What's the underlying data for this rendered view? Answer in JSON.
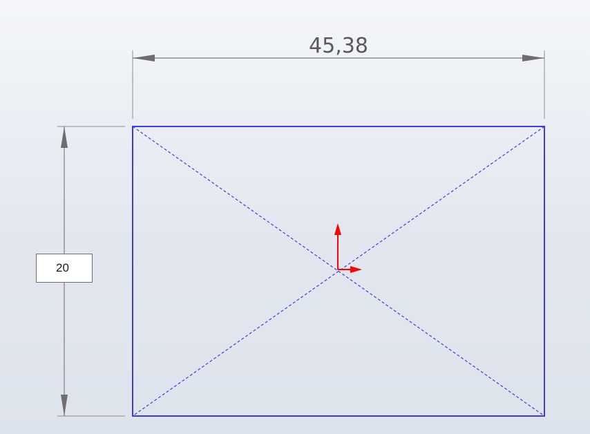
{
  "sketch": {
    "horizontal_dimension": {
      "value": "45,38"
    },
    "vertical_dimension": {
      "value": "20"
    },
    "colors": {
      "background": "#e5e9f0",
      "sketch_entity": "#3a3ae8",
      "dimension": "#8c8c8c",
      "origin_axis": "#ff0000"
    },
    "icons": {
      "origin": "sketch-origin-icon"
    }
  }
}
